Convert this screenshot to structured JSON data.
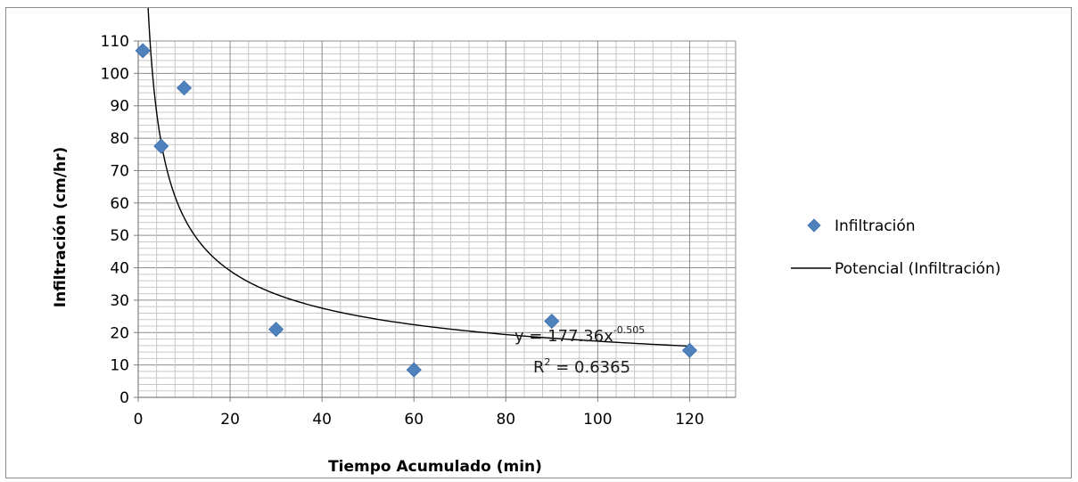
{
  "chart_data": {
    "type": "scatter",
    "xlabel": "Tiempo Acumulado (min)",
    "ylabel": "Infiltración (cm/hr)",
    "xlim": [
      0,
      130
    ],
    "ylim": [
      0,
      110
    ],
    "x_ticks": [
      0,
      20,
      40,
      60,
      80,
      100,
      120
    ],
    "y_ticks": [
      0,
      10,
      20,
      30,
      40,
      50,
      60,
      70,
      80,
      90,
      100,
      110
    ],
    "grid": true,
    "legend_position": "right",
    "series": [
      {
        "name": "Infiltración",
        "marker": "diamond",
        "color": "#4f81bd",
        "x": [
          1,
          5,
          10,
          30,
          60,
          90,
          120
        ],
        "y": [
          107,
          77.5,
          95.5,
          21,
          8.5,
          23.5,
          14.5
        ]
      },
      {
        "name": "Potencial (Infiltración)",
        "kind": "power-trendline",
        "color": "#000000",
        "coefficient": 177.36,
        "exponent": -0.505,
        "x_range": [
          1.65,
          120
        ]
      }
    ],
    "annotations": {
      "equation_prefix": "y = 177.36x",
      "equation_exponent": "-0.505",
      "r2_prefix": "R",
      "r2_sup": "2",
      "r2_value": " = 0.6365"
    }
  }
}
